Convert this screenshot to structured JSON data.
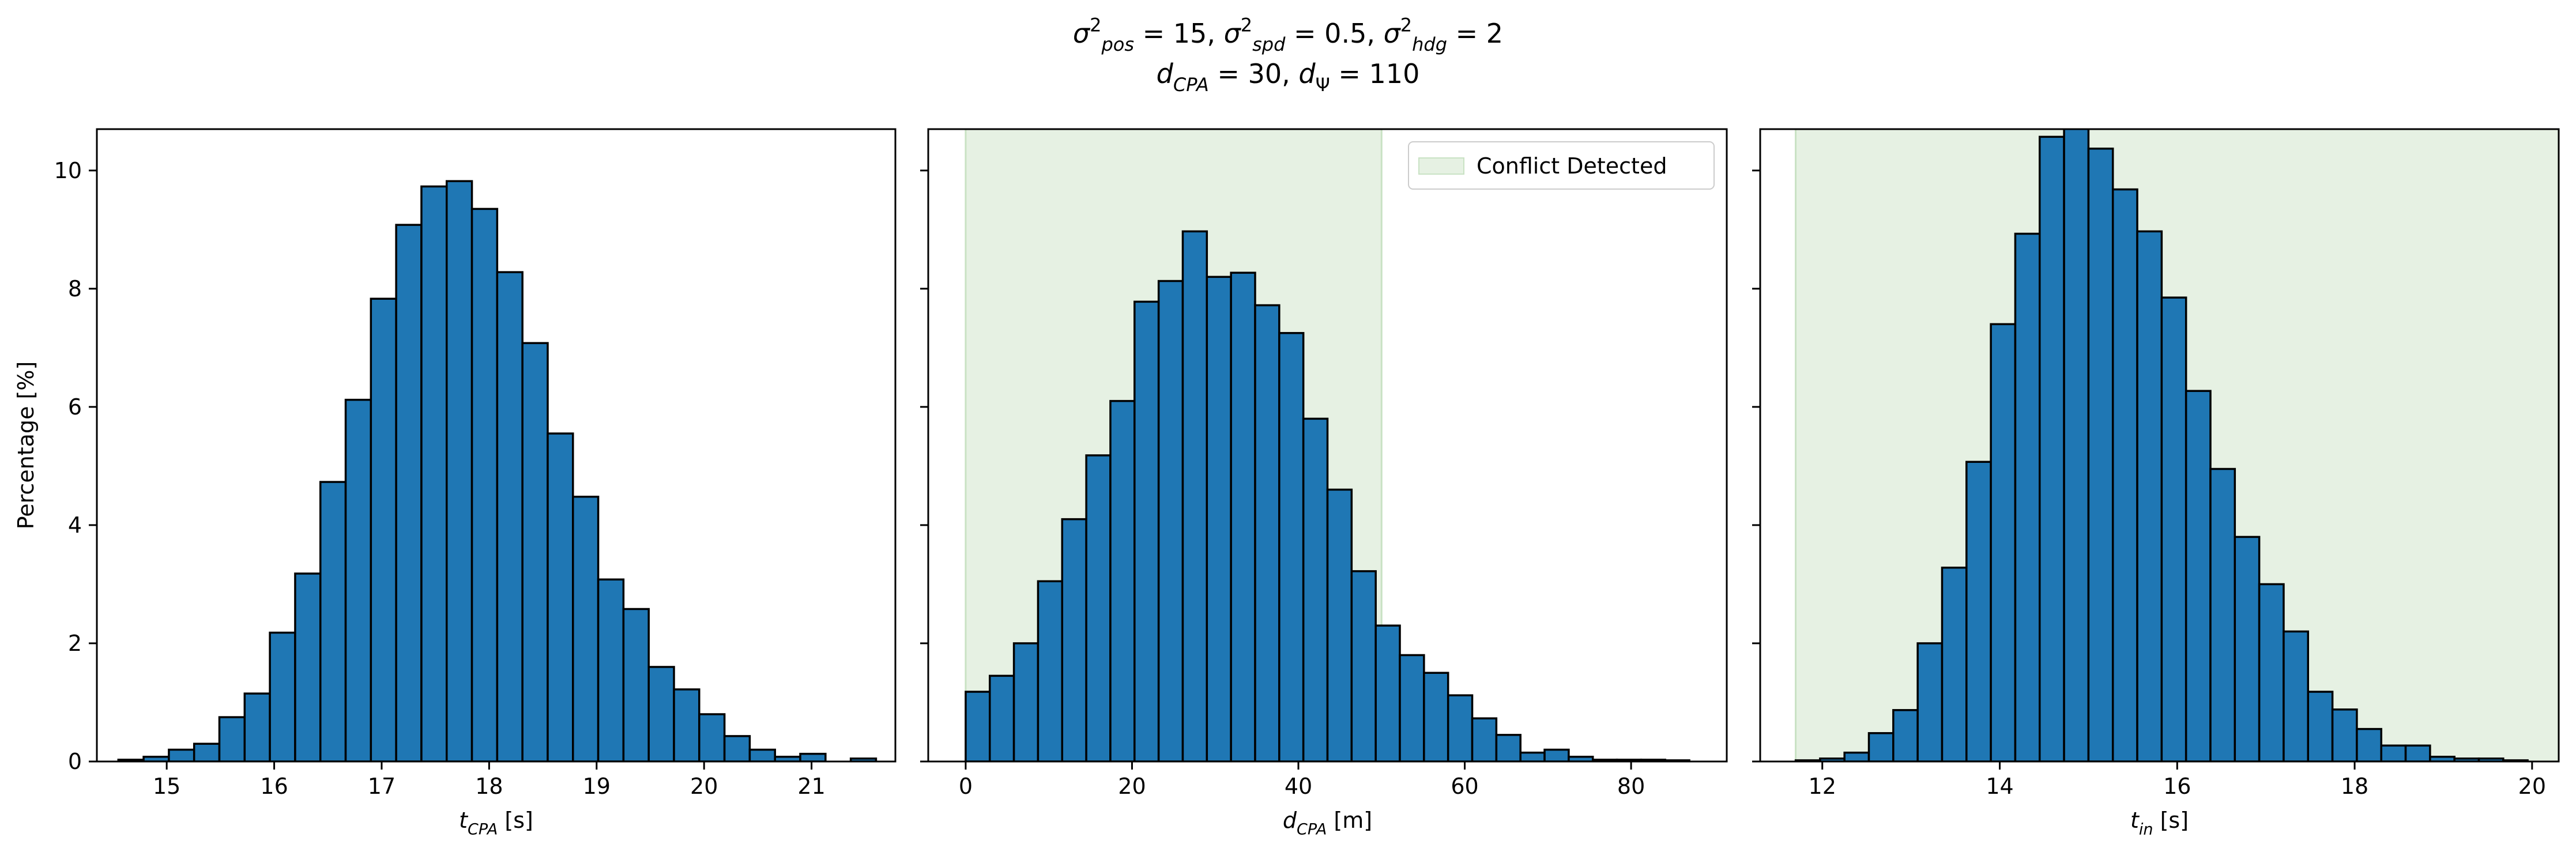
{
  "figure": {
    "title_line1": "σ²pos = 15, σ²spd = 0.5, σ²hdg = 2",
    "title_line2": "dCPA = 30, dΨ = 110",
    "title_line1_parts": [
      {
        "t": "σ",
        "i": true
      },
      {
        "t": "2",
        "sup": true
      },
      {
        "t": "pos",
        "sub": true,
        "i": true
      },
      {
        "t": " = 15, "
      },
      {
        "t": "σ",
        "i": true
      },
      {
        "t": "2",
        "sup": true
      },
      {
        "t": "spd",
        "sub": true,
        "i": true
      },
      {
        "t": " = 0.5, "
      },
      {
        "t": "σ",
        "i": true
      },
      {
        "t": "2",
        "sup": true
      },
      {
        "t": "hdg",
        "sub": true,
        "i": true
      },
      {
        "t": " = 2"
      }
    ],
    "title_line2_parts": [
      {
        "t": "d",
        "i": true
      },
      {
        "t": "CPA",
        "sub": true,
        "i": true
      },
      {
        "t": " = 30, "
      },
      {
        "t": "d",
        "i": true
      },
      {
        "t": "Ψ",
        "sub": true
      },
      {
        "t": " = 110"
      }
    ],
    "colors": {
      "bar": "#1f77b4",
      "edge": "#000000",
      "shade": "#e6f1e3",
      "shade_edge": "#c9e2c4"
    }
  },
  "chart_data": [
    {
      "type": "bar",
      "xlabel": "tCPA [s]",
      "xlabel_parts": [
        {
          "t": "t",
          "i": true
        },
        {
          "t": "CPA",
          "sub": true,
          "i": true
        },
        {
          "t": " [s]"
        }
      ],
      "ylabel": "Percentage [%]",
      "xlim": [
        14.35,
        21.78
      ],
      "ylim": [
        0,
        10.7
      ],
      "xticks": [
        15,
        16,
        17,
        18,
        19,
        20,
        21
      ],
      "yticks": [
        0,
        2,
        4,
        6,
        8,
        10
      ],
      "bin_start": 14.55,
      "bin_width": 0.235,
      "values": [
        0.03,
        0.08,
        0.2,
        0.3,
        0.75,
        1.15,
        2.18,
        3.18,
        4.73,
        6.12,
        7.83,
        9.08,
        9.73,
        9.82,
        9.35,
        8.28,
        7.08,
        5.55,
        4.48,
        3.08,
        2.58,
        1.6,
        1.22,
        0.8,
        0.43,
        0.2,
        0.08,
        0.13,
        0.0,
        0.05
      ]
    },
    {
      "type": "bar",
      "xlabel": "dCPA [m]",
      "xlabel_parts": [
        {
          "t": "d",
          "i": true
        },
        {
          "t": "CPA",
          "sub": true,
          "i": true
        },
        {
          "t": " [m]"
        }
      ],
      "xlim": [
        -4.5,
        91.5
      ],
      "ylim": [
        0,
        10.7
      ],
      "xticks": [
        0,
        20,
        40,
        60,
        80
      ],
      "yticks": [
        0,
        2,
        4,
        6,
        8,
        10
      ],
      "bin_start": 0,
      "bin_width": 2.9,
      "values": [
        1.18,
        1.45,
        2.0,
        3.05,
        4.1,
        5.18,
        6.1,
        7.78,
        8.13,
        8.97,
        8.2,
        8.27,
        7.72,
        7.25,
        5.8,
        4.6,
        3.22,
        2.3,
        1.8,
        1.5,
        1.12,
        0.73,
        0.45,
        0.15,
        0.2,
        0.08,
        0.03,
        0.03,
        0.03,
        0.02
      ],
      "shade_region": [
        0,
        50
      ],
      "legend_label": "Conflict Detected",
      "legend_position": "top-right"
    },
    {
      "type": "bar",
      "xlabel": "tin [s]",
      "xlabel_parts": [
        {
          "t": "t",
          "i": true
        },
        {
          "t": "in",
          "sub": true,
          "i": true
        },
        {
          "t": " [s]"
        }
      ],
      "xlim": [
        11.3,
        20.3
      ],
      "ylim": [
        0,
        10.7
      ],
      "xticks": [
        12,
        14,
        16,
        18,
        20
      ],
      "yticks": [
        0,
        2,
        4,
        6,
        8,
        10
      ],
      "bin_start": 11.7,
      "bin_width": 0.275,
      "values": [
        0.02,
        0.05,
        0.15,
        0.48,
        0.87,
        2.0,
        3.28,
        5.07,
        7.4,
        8.93,
        10.57,
        10.8,
        10.37,
        9.68,
        8.97,
        7.85,
        6.27,
        4.95,
        3.8,
        3.0,
        2.2,
        1.18,
        0.88,
        0.55,
        0.27,
        0.27,
        0.08,
        0.05,
        0.05,
        0.02
      ],
      "shade_region": [
        11.7,
        20.3
      ]
    }
  ]
}
